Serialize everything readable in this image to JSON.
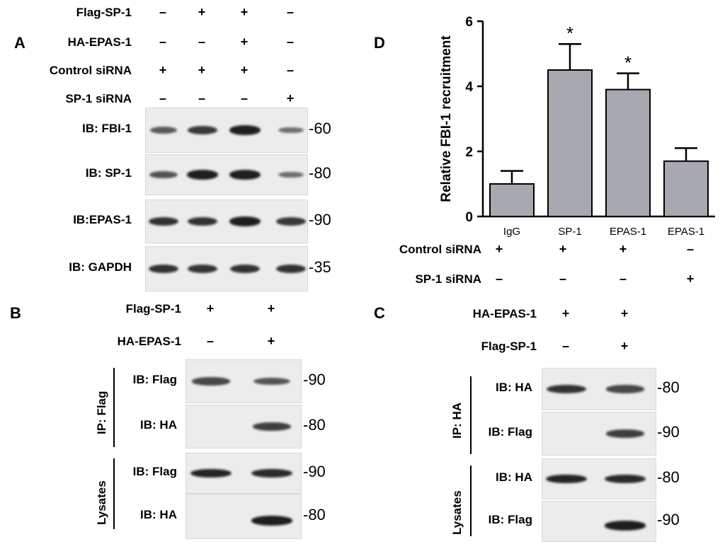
{
  "panel_a": {
    "letter": "A",
    "rows": [
      {
        "label": "Flag-SP-1",
        "signs": [
          "–",
          "+",
          "+",
          "–"
        ]
      },
      {
        "label": "HA-EPAS-1",
        "signs": [
          "–",
          "–",
          "+",
          "–"
        ]
      },
      {
        "label": "Control siRNA",
        "signs": [
          "+",
          "+",
          "+",
          "–"
        ]
      },
      {
        "label": "SP-1 siRNA",
        "signs": [
          "–",
          "–",
          "–",
          "+"
        ]
      }
    ],
    "blots": [
      {
        "ib": "IB: FBI-1",
        "mw": "-60",
        "intensity": [
          0.55,
          0.8,
          1.0,
          0.4
        ]
      },
      {
        "ib": "IB: SP-1",
        "mw": "-80",
        "intensity": [
          0.6,
          1.0,
          1.0,
          0.4
        ]
      },
      {
        "ib": "IB:EPAS-1",
        "mw": "-90",
        "intensity": [
          0.85,
          0.85,
          1.0,
          0.8
        ]
      },
      {
        "ib": "IB: GAPDH",
        "mw": "-35",
        "intensity": [
          0.85,
          0.85,
          0.85,
          0.85
        ]
      }
    ]
  },
  "panel_b": {
    "letter": "B",
    "rows": [
      {
        "label": "Flag-SP-1",
        "signs": [
          "+",
          "+"
        ]
      },
      {
        "label": "HA-EPAS-1",
        "signs": [
          "–",
          "+"
        ]
      }
    ],
    "group_ip": "IP: Flag",
    "group_lys": "Lysates",
    "blots": [
      {
        "ib": "IB: Flag",
        "mw": "-90",
        "intensity": [
          0.7,
          0.6
        ]
      },
      {
        "ib": "IB: HA",
        "mw": "-80",
        "intensity": [
          0.0,
          0.75
        ]
      },
      {
        "ib": "IB: Flag",
        "mw": "-90",
        "intensity": [
          0.95,
          0.9
        ]
      },
      {
        "ib": "IB: HA",
        "mw": "-80",
        "intensity": [
          0.0,
          1.0
        ]
      }
    ]
  },
  "panel_c": {
    "letter": "C",
    "rows": [
      {
        "label": "HA-EPAS-1",
        "signs": [
          "+",
          "+"
        ]
      },
      {
        "label": "Flag-SP-1",
        "signs": [
          "–",
          "+"
        ]
      }
    ],
    "group_ip": "IP: HA",
    "group_lys": "Lysates",
    "blots": [
      {
        "ib": "IB: HA",
        "mw": "-80",
        "intensity": [
          0.85,
          0.7
        ]
      },
      {
        "ib": "IB: Flag",
        "mw": "-90",
        "intensity": [
          0.0,
          0.75
        ]
      },
      {
        "ib": "IB: HA",
        "mw": "-80",
        "intensity": [
          0.95,
          0.9
        ]
      },
      {
        "ib": "IB: Flag",
        "mw": "-90",
        "intensity": [
          0.0,
          1.0
        ]
      }
    ]
  },
  "panel_d": {
    "letter": "D",
    "row_labels": [
      "Control siRNA",
      "SP-1 siRNA"
    ],
    "row_signs": [
      [
        "+",
        "+",
        "+",
        "–"
      ],
      [
        "–",
        "–",
        "–",
        "+"
      ]
    ]
  },
  "chart_data": {
    "type": "bar",
    "categories": [
      "IgG",
      "SP-1",
      "EPAS-1",
      "EPAS-1"
    ],
    "values": [
      1.0,
      4.5,
      3.9,
      1.7
    ],
    "errors": [
      0.4,
      0.8,
      0.5,
      0.4
    ],
    "significance": [
      "",
      "*",
      "*",
      ""
    ],
    "title": "",
    "xlabel": "",
    "ylabel": "Relative FBI-1 recruitment",
    "ylim": [
      0,
      6
    ],
    "yticks": [
      0,
      2,
      4,
      6
    ],
    "grid": false,
    "bar_color": "#a8a8b0"
  }
}
